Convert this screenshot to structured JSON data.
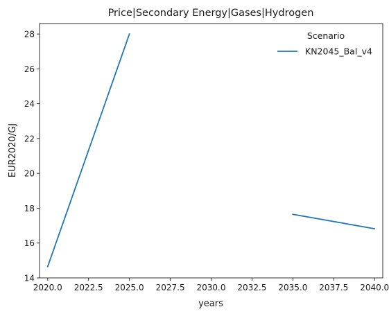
{
  "chart_data": {
    "type": "line",
    "title": "Price|Secondary Energy|Gases|Hydrogen",
    "xlabel": "years",
    "ylabel": "EUR2020/GJ",
    "xlim": [
      2019.5,
      2040.5
    ],
    "ylim": [
      14,
      28.6
    ],
    "xticks": [
      2020.0,
      2022.5,
      2025.0,
      2027.5,
      2030.0,
      2032.5,
      2035.0,
      2037.5,
      2040.0
    ],
    "xtick_labels": [
      "2020.0",
      "2022.5",
      "2025.0",
      "2027.5",
      "2030.0",
      "2032.5",
      "2035.0",
      "2037.5",
      "2040.0"
    ],
    "yticks": [
      14,
      16,
      18,
      20,
      22,
      24,
      26,
      28
    ],
    "ytick_labels": [
      "14",
      "16",
      "18",
      "20",
      "22",
      "24",
      "26",
      "28"
    ],
    "grid": false,
    "legend": {
      "title": "Scenario",
      "placement": "top-right"
    },
    "series": [
      {
        "name": "KN2045_Bal_v4",
        "color": "#1f77b4",
        "segments": [
          [
            {
              "x": 2020,
              "y": 14.65
            },
            {
              "x": 2025,
              "y": 28.0
            }
          ],
          [
            {
              "x": 2035,
              "y": 17.65
            },
            {
              "x": 2040,
              "y": 16.82
            }
          ]
        ]
      }
    ]
  }
}
